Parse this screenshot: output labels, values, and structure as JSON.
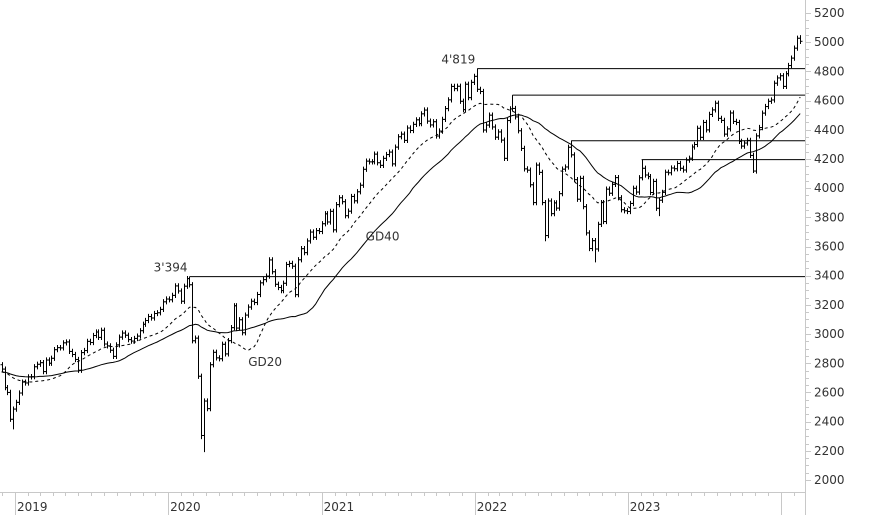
{
  "chart_data": {
    "type": "ohlc-bar",
    "interval": "weekly",
    "ylim": [
      1950,
      5250
    ],
    "y_ticks": [
      2000,
      2200,
      2400,
      2600,
      2800,
      3000,
      3200,
      3400,
      3600,
      3800,
      4000,
      4200,
      4400,
      4600,
      4800,
      5000,
      5200
    ],
    "x_tick_labels": [
      "2019",
      "2020",
      "2021",
      "2022",
      "2023"
    ],
    "x_ticks": [
      "2019-01-01",
      "2020-01-01",
      "2021-01-01",
      "2022-01-01",
      "2023-01-01",
      "2024-01-01"
    ],
    "grid": false,
    "colors": {
      "bars": "#000000",
      "text": "#333333",
      "axis": "#c8c8c8"
    },
    "moving_averages": [
      {
        "name": "GD20",
        "period": 20,
        "style": "dashed"
      },
      {
        "name": "GD40",
        "period": 40,
        "style": "solid"
      }
    ],
    "horizontal_levels": [
      {
        "value": 3394,
        "from": "2020-02-21"
      },
      {
        "value": 4819,
        "from": "2022-01-07"
      },
      {
        "value": 4637,
        "from": "2022-04-01"
      },
      {
        "value": 4325,
        "from": "2022-08-19"
      },
      {
        "value": 4195,
        "from": "2023-02-03"
      }
    ],
    "annotations": [
      {
        "text": "3'394",
        "date": "2020-02-21",
        "value": 3394
      },
      {
        "text": "4'819",
        "date": "2022-01-07",
        "value": 4819
      }
    ],
    "ma_labels": [
      {
        "text": "GD40",
        "date": "2021-04-16",
        "value": 3640
      },
      {
        "text": "GD20",
        "date": "2020-07-10",
        "value": 2780
      }
    ],
    "lows": {
      "2018-12-28": 2347,
      "2020-03-20": 2280,
      "2020-03-27": 2191,
      "2022-06-17": 3636,
      "2022-10-14": 3491,
      "2023-03-17": 3808,
      "2023-10-27": 4104
    },
    "highs": {
      "2020-02-21": 3394,
      "2022-01-07": 4819,
      "2022-04-01": 4637,
      "2022-08-19": 4325,
      "2023-02-03": 4195,
      "2024-02-16": 5048
    },
    "closes": {
      "2018-11-30": 2760,
      "2018-12-07": 2633,
      "2018-12-14": 2600,
      "2018-12-21": 2416,
      "2018-12-28": 2486,
      "2019-01-04": 2532,
      "2019-01-11": 2596,
      "2019-01-18": 2671,
      "2019-01-25": 2665,
      "2019-02-01": 2707,
      "2019-02-08": 2708,
      "2019-02-15": 2776,
      "2019-02-22": 2793,
      "2019-03-01": 2804,
      "2019-03-08": 2743,
      "2019-03-15": 2822,
      "2019-03-22": 2800,
      "2019-03-29": 2834,
      "2019-04-05": 2893,
      "2019-04-12": 2907,
      "2019-04-19": 2905,
      "2019-04-26": 2940,
      "2019-05-03": 2946,
      "2019-05-10": 2881,
      "2019-05-17": 2860,
      "2019-05-24": 2826,
      "2019-05-31": 2752,
      "2019-06-07": 2873,
      "2019-06-14": 2887,
      "2019-06-21": 2950,
      "2019-06-28": 2942,
      "2019-07-05": 2990,
      "2019-07-12": 3014,
      "2019-07-19": 2977,
      "2019-07-26": 3026,
      "2019-08-02": 2932,
      "2019-08-09": 2919,
      "2019-08-16": 2889,
      "2019-08-23": 2847,
      "2019-08-30": 2926,
      "2019-09-06": 2979,
      "2019-09-13": 3007,
      "2019-09-20": 2992,
      "2019-09-27": 2962,
      "2019-10-04": 2952,
      "2019-10-11": 2970,
      "2019-10-18": 2986,
      "2019-10-25": 3023,
      "2019-11-01": 3067,
      "2019-11-08": 3093,
      "2019-11-15": 3120,
      "2019-11-22": 3110,
      "2019-11-29": 3141,
      "2019-12-06": 3146,
      "2019-12-13": 3169,
      "2019-12-20": 3221,
      "2019-12-27": 3240,
      "2020-01-03": 3235,
      "2020-01-10": 3265,
      "2020-01-17": 3330,
      "2020-01-24": 3295,
      "2020-01-31": 3225,
      "2020-02-07": 3328,
      "2020-02-14": 3380,
      "2020-02-21": 3338,
      "2020-02-28": 2954,
      "2020-03-06": 2972,
      "2020-03-13": 2711,
      "2020-03-20": 2305,
      "2020-03-27": 2541,
      "2020-04-03": 2489,
      "2020-04-10": 2790,
      "2020-04-17": 2875,
      "2020-04-24": 2837,
      "2020-05-01": 2831,
      "2020-05-08": 2930,
      "2020-05-15": 2864,
      "2020-05-22": 2955,
      "2020-05-29": 3044,
      "2020-06-05": 3194,
      "2020-06-12": 3041,
      "2020-06-19": 3098,
      "2020-06-26": 3009,
      "2020-07-03": 3130,
      "2020-07-10": 3185,
      "2020-07-17": 3225,
      "2020-07-24": 3216,
      "2020-07-31": 3271,
      "2020-08-07": 3351,
      "2020-08-14": 3373,
      "2020-08-21": 3397,
      "2020-08-28": 3508,
      "2020-09-04": 3427,
      "2020-09-11": 3341,
      "2020-09-18": 3319,
      "2020-09-25": 3298,
      "2020-10-02": 3348,
      "2020-10-09": 3477,
      "2020-10-16": 3484,
      "2020-10-23": 3465,
      "2020-10-30": 3270,
      "2020-11-06": 3509,
      "2020-11-13": 3585,
      "2020-11-20": 3558,
      "2020-11-27": 3638,
      "2020-12-04": 3699,
      "2020-12-11": 3663,
      "2020-12-18": 3709,
      "2020-12-25": 3703,
      "2021-01-01": 3756,
      "2021-01-08": 3824,
      "2021-01-15": 3768,
      "2021-01-22": 3841,
      "2021-01-29": 3714,
      "2021-02-05": 3887,
      "2021-02-12": 3934,
      "2021-02-19": 3907,
      "2021-02-26": 3811,
      "2021-03-05": 3842,
      "2021-03-12": 3943,
      "2021-03-19": 3913,
      "2021-03-26": 3975,
      "2021-04-02": 4020,
      "2021-04-09": 4129,
      "2021-04-16": 4185,
      "2021-04-23": 4180,
      "2021-04-30": 4181,
      "2021-05-07": 4233,
      "2021-05-14": 4174,
      "2021-05-21": 4156,
      "2021-05-28": 4204,
      "2021-06-04": 4230,
      "2021-06-11": 4247,
      "2021-06-18": 4166,
      "2021-06-25": 4281,
      "2021-07-02": 4352,
      "2021-07-09": 4370,
      "2021-07-16": 4327,
      "2021-07-23": 4412,
      "2021-07-30": 4395,
      "2021-08-06": 4437,
      "2021-08-13": 4468,
      "2021-08-20": 4442,
      "2021-08-27": 4509,
      "2021-09-03": 4535,
      "2021-09-10": 4459,
      "2021-09-17": 4433,
      "2021-09-24": 4455,
      "2021-10-01": 4357,
      "2021-10-08": 4391,
      "2021-10-15": 4471,
      "2021-10-22": 4545,
      "2021-10-29": 4605,
      "2021-11-05": 4697,
      "2021-11-12": 4682,
      "2021-11-19": 4698,
      "2021-11-26": 4595,
      "2021-12-03": 4538,
      "2021-12-10": 4712,
      "2021-12-17": 4620,
      "2021-12-24": 4725,
      "2021-12-31": 4766,
      "2022-01-07": 4677,
      "2022-01-14": 4662,
      "2022-01-21": 4398,
      "2022-01-28": 4432,
      "2022-02-04": 4500,
      "2022-02-11": 4419,
      "2022-02-18": 4349,
      "2022-02-25": 4385,
      "2022-03-04": 4329,
      "2022-03-11": 4204,
      "2022-03-18": 4463,
      "2022-03-25": 4543,
      "2022-04-01": 4546,
      "2022-04-08": 4488,
      "2022-04-15": 4393,
      "2022-04-22": 4272,
      "2022-04-29": 4132,
      "2022-05-06": 4123,
      "2022-05-13": 4023,
      "2022-05-20": 3901,
      "2022-05-27": 4158,
      "2022-06-03": 4108,
      "2022-06-10": 3901,
      "2022-06-17": 3675,
      "2022-06-24": 3912,
      "2022-07-01": 3825,
      "2022-07-08": 3899,
      "2022-07-15": 3863,
      "2022-07-22": 3962,
      "2022-07-29": 4130,
      "2022-08-05": 4145,
      "2022-08-12": 4280,
      "2022-08-19": 4228,
      "2022-08-26": 4058,
      "2022-09-02": 3924,
      "2022-09-09": 4067,
      "2022-09-16": 3873,
      "2022-09-23": 3693,
      "2022-09-30": 3586,
      "2022-10-07": 3640,
      "2022-10-14": 3583,
      "2022-10-21": 3752,
      "2022-10-28": 3901,
      "2022-11-04": 3771,
      "2022-11-11": 3993,
      "2022-11-18": 3965,
      "2022-11-25": 4026,
      "2022-12-02": 4072,
      "2022-12-09": 3934,
      "2022-12-16": 3852,
      "2022-12-23": 3845,
      "2022-12-30": 3840,
      "2023-01-06": 3895,
      "2023-01-13": 3999,
      "2023-01-20": 3973,
      "2023-01-27": 4071,
      "2023-02-03": 4136,
      "2023-02-10": 4090,
      "2023-02-17": 4079,
      "2023-02-24": 3970,
      "2023-03-03": 4046,
      "2023-03-10": 3862,
      "2023-03-17": 3917,
      "2023-03-24": 3971,
      "2023-03-31": 4109,
      "2023-04-07": 4105,
      "2023-04-14": 4138,
      "2023-04-21": 4133,
      "2023-04-28": 4169,
      "2023-05-05": 4136,
      "2023-05-12": 4124,
      "2023-05-19": 4192,
      "2023-05-26": 4205,
      "2023-06-02": 4282,
      "2023-06-09": 4299,
      "2023-06-16": 4410,
      "2023-06-23": 4348,
      "2023-06-30": 4450,
      "2023-07-07": 4399,
      "2023-07-14": 4505,
      "2023-07-21": 4536,
      "2023-07-28": 4582,
      "2023-08-04": 4478,
      "2023-08-11": 4464,
      "2023-08-18": 4370,
      "2023-08-25": 4406,
      "2023-09-01": 4515,
      "2023-09-08": 4457,
      "2023-09-15": 4450,
      "2023-09-22": 4320,
      "2023-09-29": 4288,
      "2023-10-06": 4309,
      "2023-10-13": 4327,
      "2023-10-20": 4224,
      "2023-10-27": 4117,
      "2023-11-03": 4358,
      "2023-11-10": 4415,
      "2023-11-17": 4514,
      "2023-11-24": 4559,
      "2023-12-01": 4595,
      "2023-12-08": 4604,
      "2023-12-15": 4719,
      "2023-12-22": 4755,
      "2023-12-29": 4770,
      "2024-01-05": 4697,
      "2024-01-12": 4784,
      "2024-01-19": 4840,
      "2024-01-26": 4891,
      "2024-02-02": 4959,
      "2024-02-09": 5027,
      "2024-02-16": 5006
    }
  }
}
